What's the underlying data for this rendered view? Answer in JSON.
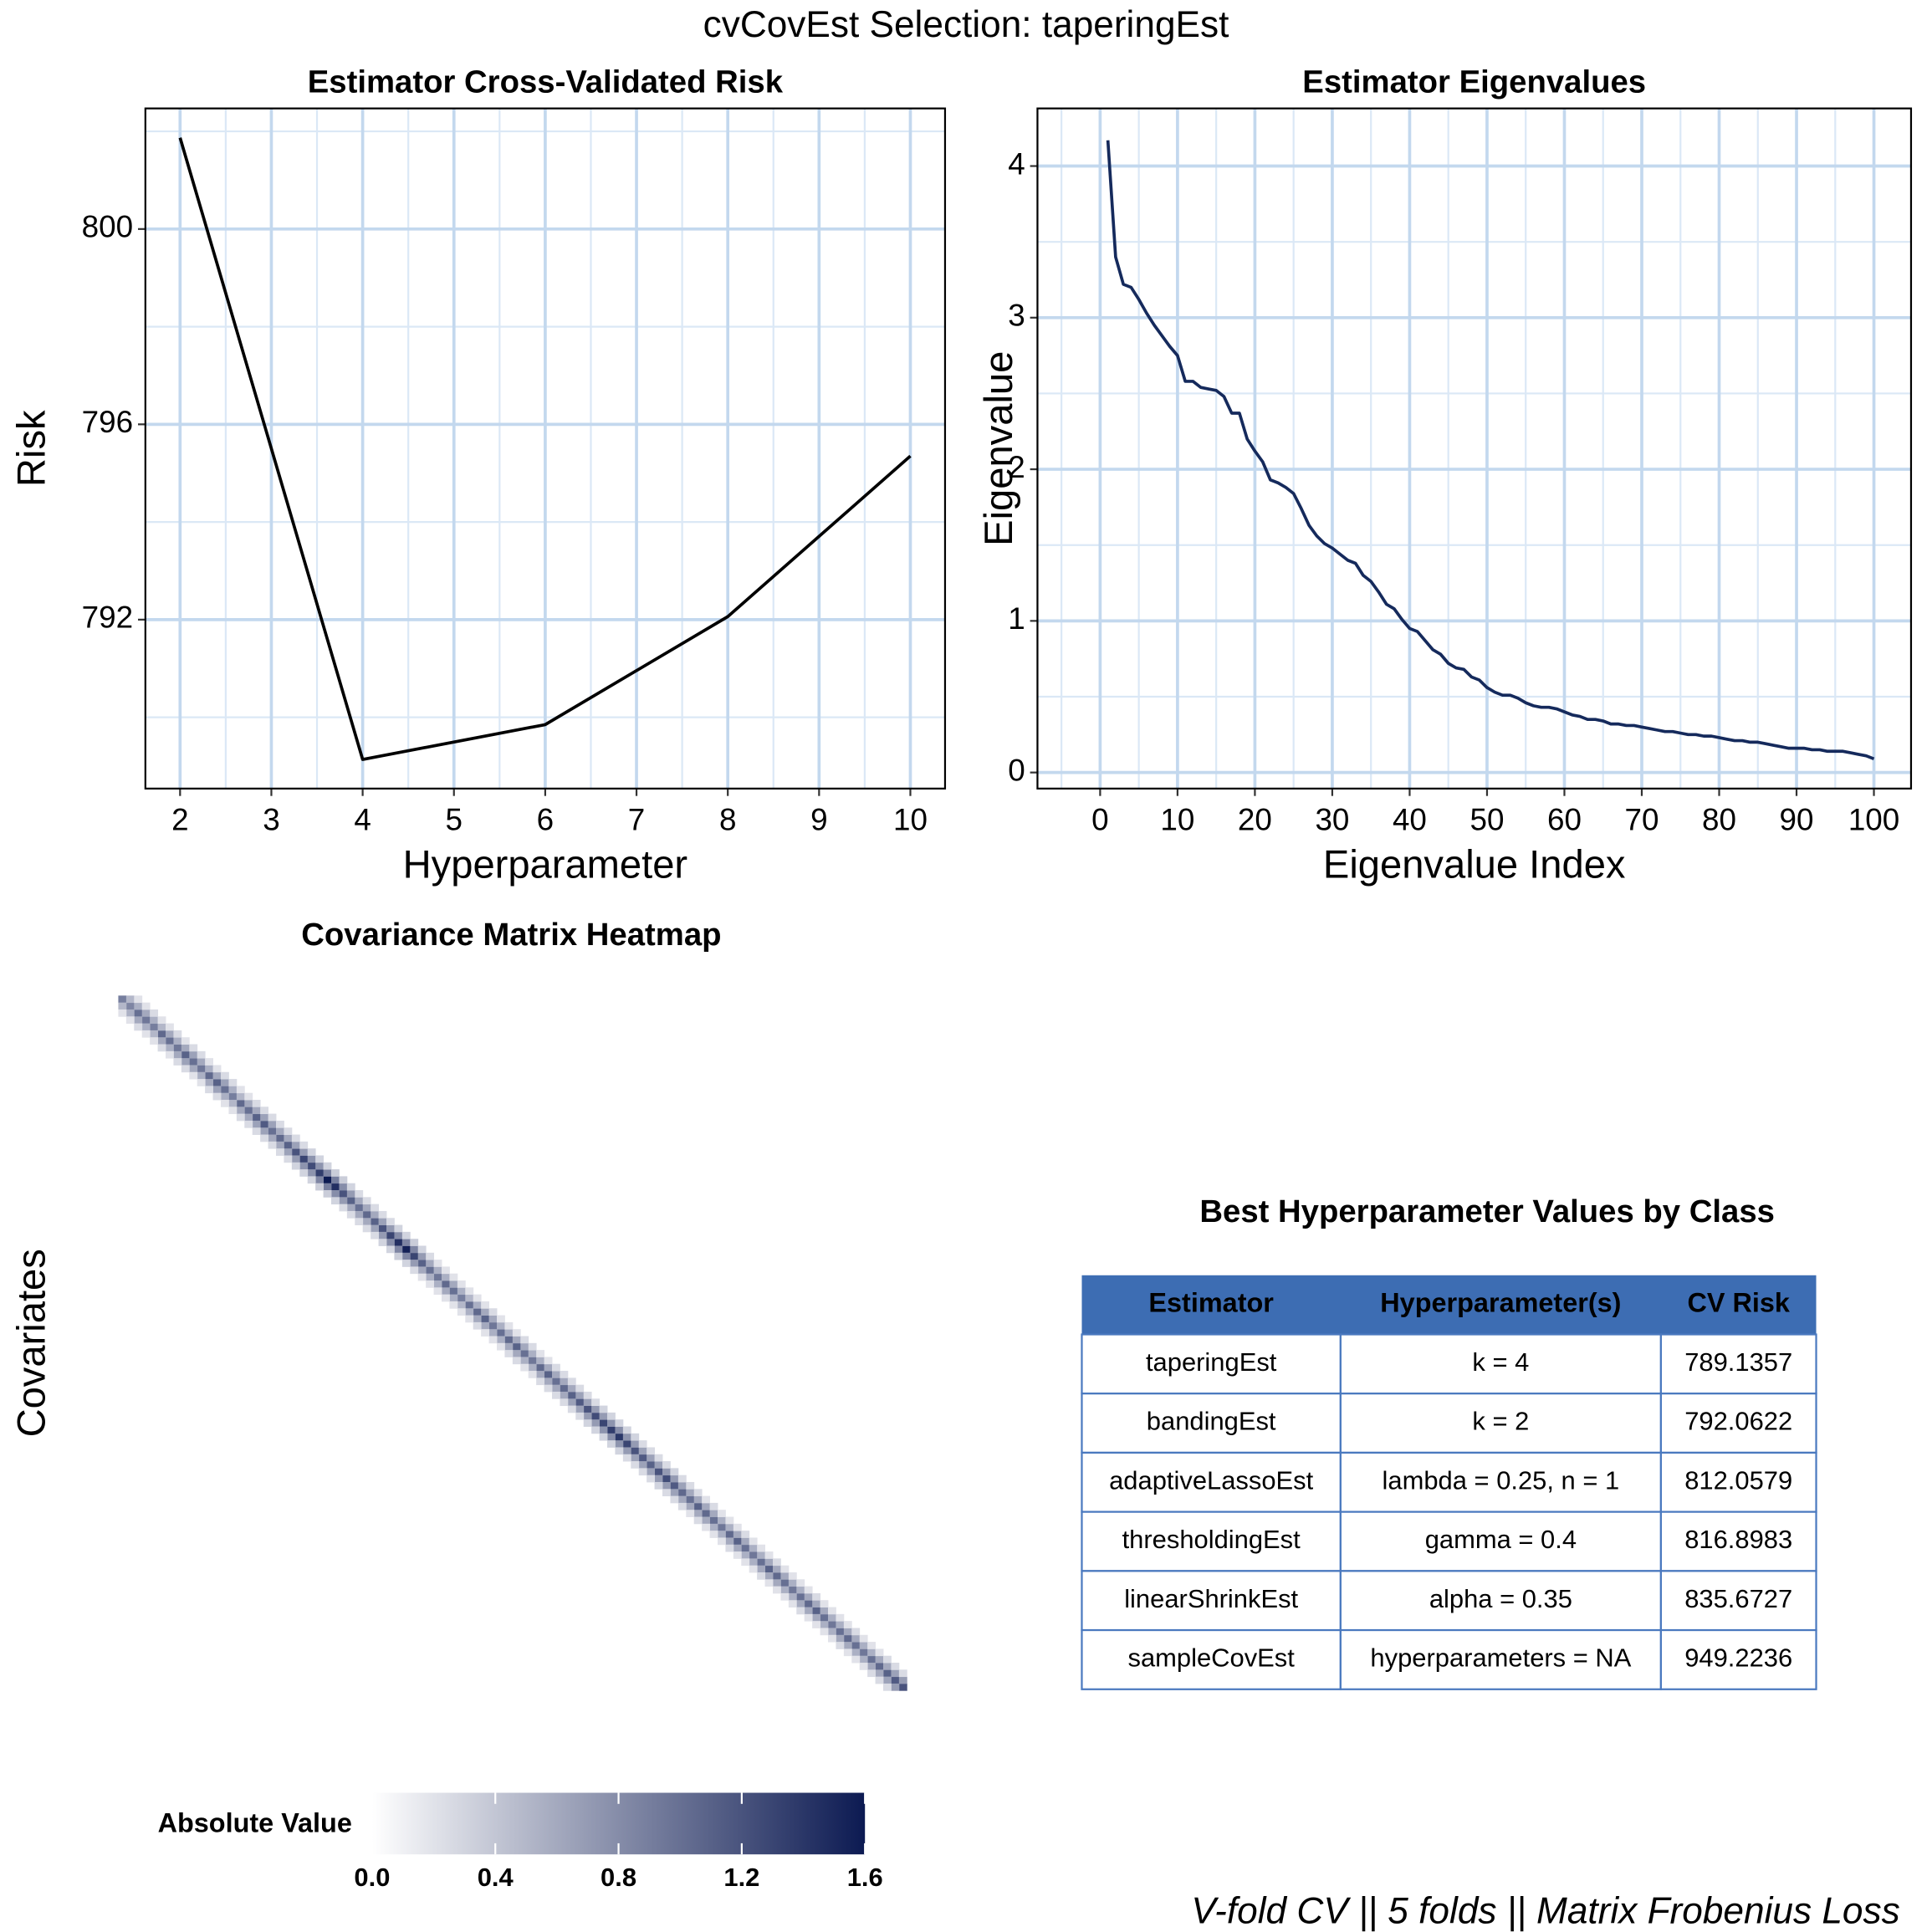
{
  "title": "cvCovEst Selection: taperingEst",
  "footer": "V-fold CV  ||  5 folds  ||  Matrix Frobenius Loss",
  "chart_data": [
    {
      "type": "line",
      "title": "Estimator Cross-Validated Risk",
      "x_label": "Hyperparameter",
      "y_label": "Risk",
      "x": [
        2,
        4,
        6,
        8,
        10
      ],
      "values": [
        801.87,
        789.1357,
        789.85,
        792.0622,
        795.35
      ],
      "color": "#000000",
      "xlim": [
        1.62,
        10.38
      ],
      "xticks": [
        2,
        3,
        4,
        5,
        6,
        7,
        8,
        9,
        10
      ],
      "ylim": [
        788.54,
        802.47
      ],
      "yticks": [
        792,
        796,
        800
      ],
      "grid": true
    },
    {
      "type": "line",
      "title": "Estimator Eigenvalues",
      "x_label": "Eigenvalue Index",
      "y_label": "Eigenvalue",
      "x": [
        1,
        2,
        3,
        4,
        5,
        6,
        7,
        8,
        9,
        10,
        11,
        12,
        13,
        14,
        15,
        16,
        17,
        18,
        19,
        20,
        21,
        22,
        23,
        24,
        25,
        26,
        27,
        28,
        29,
        30,
        31,
        32,
        33,
        34,
        35,
        36,
        37,
        38,
        39,
        40,
        41,
        42,
        43,
        44,
        45,
        46,
        47,
        48,
        49,
        50,
        51,
        52,
        53,
        54,
        55,
        56,
        57,
        58,
        59,
        60,
        61,
        62,
        63,
        64,
        65,
        66,
        67,
        68,
        69,
        70,
        71,
        72,
        73,
        74,
        75,
        76,
        77,
        78,
        79,
        80,
        81,
        82,
        83,
        84,
        85,
        86,
        87,
        88,
        89,
        90,
        91,
        92,
        93,
        94,
        95,
        96,
        97,
        98,
        99,
        100
      ],
      "values": [
        4.17,
        3.4,
        3.22,
        3.2,
        3.12,
        3.03,
        2.95,
        2.88,
        2.81,
        2.75,
        2.58,
        2.58,
        2.54,
        2.53,
        2.52,
        2.48,
        2.37,
        2.37,
        2.2,
        2.12,
        2.05,
        1.93,
        1.91,
        1.88,
        1.84,
        1.74,
        1.63,
        1.56,
        1.51,
        1.48,
        1.44,
        1.4,
        1.38,
        1.3,
        1.26,
        1.19,
        1.11,
        1.08,
        1.01,
        0.95,
        0.93,
        0.87,
        0.81,
        0.78,
        0.72,
        0.69,
        0.68,
        0.63,
        0.61,
        0.56,
        0.53,
        0.51,
        0.51,
        0.49,
        0.46,
        0.44,
        0.43,
        0.43,
        0.42,
        0.4,
        0.38,
        0.37,
        0.35,
        0.35,
        0.34,
        0.32,
        0.32,
        0.31,
        0.31,
        0.3,
        0.29,
        0.28,
        0.27,
        0.27,
        0.26,
        0.25,
        0.25,
        0.24,
        0.24,
        0.23,
        0.22,
        0.21,
        0.21,
        0.2,
        0.2,
        0.19,
        0.18,
        0.17,
        0.16,
        0.16,
        0.16,
        0.15,
        0.15,
        0.14,
        0.14,
        0.14,
        0.13,
        0.12,
        0.11,
        0.09
      ],
      "color": "#152a5c",
      "xlim": [
        -8.1,
        104.8
      ],
      "xticks": [
        0,
        10,
        20,
        30,
        40,
        50,
        60,
        70,
        80,
        90,
        100
      ],
      "ylim": [
        -0.106,
        4.38
      ],
      "yticks": [
        0,
        1,
        2,
        3,
        4
      ],
      "grid": true
    },
    {
      "type": "heatmap",
      "title": "Covariance Matrix Heatmap",
      "y_label": "Covariates",
      "legend_title": "Absolute Value",
      "color_low": "#ffffff",
      "color_high": "#0c1a52",
      "clim": [
        0,
        1.6
      ],
      "cticks": [
        {
          "value": 0,
          "label": "0.0"
        },
        0.4,
        0.8,
        1.2,
        1.6
      ],
      "values_by_offset": [
        [
          0.9,
          0.85,
          1.0,
          0.95,
          0.9,
          1.05,
          1.0,
          0.95,
          1.1,
          1.0,
          0.95,
          1.05,
          1.1,
          1.0,
          0.9,
          1.05,
          1.0,
          1.1,
          1.15,
          1.0,
          1.05,
          1.1,
          1.2,
          1.3,
          1.25,
          1.35,
          1.6,
          1.45,
          1.2,
          1.1,
          1.0,
          1.05,
          1.1,
          1.2,
          1.3,
          1.45,
          1.55,
          1.3,
          1.1,
          1.0,
          0.95,
          1.05,
          1.0,
          0.9,
          1.0,
          1.05,
          1.1,
          0.95,
          1.0,
          1.05,
          1.1,
          1.0,
          0.95,
          1.05,
          1.1,
          1.0,
          1.05,
          1.1,
          1.15,
          1.2,
          1.25,
          1.3,
          1.35,
          1.4,
          1.3,
          1.2,
          1.15,
          1.1,
          1.2,
          1.25,
          1.15,
          1.05,
          1.0,
          1.1,
          1.05,
          1.0,
          0.95,
          1.05,
          1.1,
          1.0,
          0.95,
          1.0,
          1.1,
          1.05,
          1.0,
          0.95,
          1.0,
          1.05,
          1.1,
          1.0,
          0.95,
          1.0,
          1.05,
          1.0,
          0.95,
          1.0,
          1.05,
          1.1,
          1.15,
          1.2
        ],
        [
          0.5,
          0.55,
          0.6,
          0.55,
          0.5,
          0.6,
          0.55,
          0.6,
          0.65,
          0.6,
          0.55,
          0.6,
          0.65,
          0.55,
          0.5,
          0.6,
          0.6,
          0.65,
          0.65,
          0.6,
          0.6,
          0.65,
          0.7,
          0.75,
          0.75,
          0.85,
          0.9,
          0.8,
          0.7,
          0.6,
          0.6,
          0.6,
          0.65,
          0.7,
          0.8,
          0.85,
          0.85,
          0.7,
          0.6,
          0.55,
          0.55,
          0.6,
          0.55,
          0.5,
          0.55,
          0.6,
          0.6,
          0.55,
          0.55,
          0.6,
          0.6,
          0.55,
          0.55,
          0.6,
          0.6,
          0.6,
          0.6,
          0.65,
          0.65,
          0.7,
          0.7,
          0.75,
          0.8,
          0.75,
          0.7,
          0.65,
          0.65,
          0.65,
          0.7,
          0.7,
          0.65,
          0.6,
          0.6,
          0.6,
          0.6,
          0.55,
          0.55,
          0.6,
          0.6,
          0.55,
          0.55,
          0.6,
          0.6,
          0.6,
          0.55,
          0.55,
          0.6,
          0.6,
          0.6,
          0.55,
          0.55,
          0.6,
          0.6,
          0.55,
          0.55,
          0.6,
          0.6,
          0.65,
          0.7
        ],
        [
          0.2,
          0.2,
          0.25,
          0.2,
          0.2,
          0.25,
          0.2,
          0.25,
          0.25,
          0.2,
          0.2,
          0.25,
          0.25,
          0.2,
          0.2,
          0.25,
          0.25,
          0.25,
          0.25,
          0.25,
          0.25,
          0.25,
          0.3,
          0.3,
          0.3,
          0.35,
          0.35,
          0.3,
          0.25,
          0.25,
          0.25,
          0.25,
          0.25,
          0.3,
          0.3,
          0.35,
          0.3,
          0.25,
          0.2,
          0.2,
          0.2,
          0.2,
          0.2,
          0.2,
          0.2,
          0.25,
          0.2,
          0.2,
          0.2,
          0.25,
          0.25,
          0.2,
          0.2,
          0.25,
          0.25,
          0.25,
          0.25,
          0.25,
          0.25,
          0.3,
          0.3,
          0.3,
          0.3,
          0.3,
          0.25,
          0.25,
          0.25,
          0.25,
          0.3,
          0.25,
          0.25,
          0.25,
          0.2,
          0.25,
          0.2,
          0.2,
          0.2,
          0.25,
          0.2,
          0.2,
          0.2,
          0.25,
          0.2,
          0.2,
          0.2,
          0.2,
          0.25,
          0.2,
          0.2,
          0.2,
          0.2,
          0.25,
          0.2,
          0.2,
          0.2,
          0.25,
          0.25,
          0.25
        ]
      ]
    }
  ],
  "table": {
    "title": "Best Hyperparameter Values by Class",
    "columns": [
      "Estimator",
      "Hyperparameter(s)",
      "CV Risk"
    ],
    "rows": [
      [
        "taperingEst",
        "k = 4",
        "789.1357"
      ],
      [
        "bandingEst",
        "k = 2",
        "792.0622"
      ],
      [
        "adaptiveLassoEst",
        "lambda = 0.25, n = 1",
        "812.0579"
      ],
      [
        "thresholdingEst",
        "gamma = 0.4",
        "816.8983"
      ],
      [
        "linearShrinkEst",
        "alpha = 0.35",
        "835.6727"
      ],
      [
        "sampleCovEst",
        "hyperparameters = NA",
        "949.2236"
      ]
    ]
  }
}
